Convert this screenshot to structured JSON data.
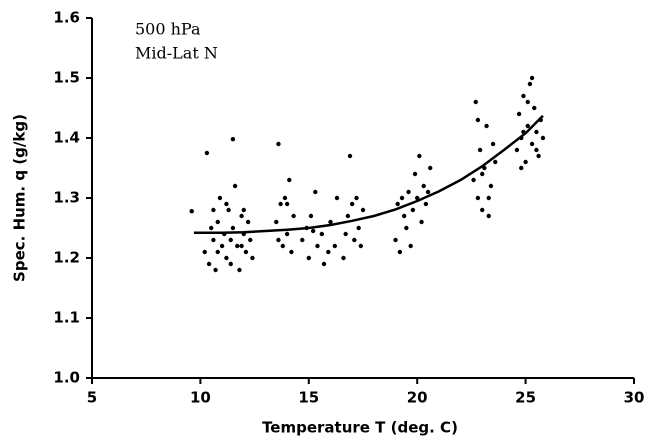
{
  "chart_data": {
    "type": "scatter",
    "xlabel": "Temperature T (deg. C)",
    "ylabel": "Spec. Hum. q (g/kg)",
    "annotations": [
      "500 hPa",
      "Mid-Lat N"
    ],
    "xlim": [
      5,
      30
    ],
    "xticks": [
      5,
      10,
      15,
      20,
      25,
      30
    ],
    "ylim": [
      1.0,
      1.6
    ],
    "yticks": [
      {
        "value": 1.0,
        "label": "1.0"
      },
      1.1,
      1.2,
      1.3,
      1.4,
      1.5,
      1.6
    ],
    "grid": false,
    "series": [
      {
        "color": "#000000",
        "x": [
          9.6,
          10.3,
          10.2,
          10.4,
          10.5,
          10.6,
          10.7,
          10.8,
          10.9,
          11.0,
          11.1,
          11.2,
          11.3,
          11.4,
          11.5,
          11.5,
          11.6,
          11.7,
          11.8,
          11.9,
          12.0,
          12.1,
          12.2,
          12.3,
          12.4,
          10.8,
          11.2,
          11.9,
          12.0,
          10.6,
          11.4,
          13.5,
          13.6,
          13.7,
          13.8,
          13.9,
          14.0,
          14.1,
          14.2,
          14.3,
          13.6,
          14.0,
          14.7,
          14.9,
          15.0,
          15.1,
          15.3,
          15.4,
          15.6,
          15.7,
          15.9,
          16.0,
          16.2,
          16.3,
          15.2,
          16.6,
          16.8,
          16.9,
          17.0,
          17.1,
          17.2,
          17.3,
          17.5,
          16.7,
          17.4,
          19.0,
          19.1,
          19.2,
          19.4,
          19.5,
          19.6,
          19.8,
          19.9,
          20.0,
          20.1,
          20.2,
          20.3,
          20.4,
          20.6,
          19.3,
          19.7,
          20.5,
          22.6,
          22.7,
          22.8,
          22.9,
          23.0,
          23.1,
          23.2,
          23.3,
          23.4,
          23.5,
          22.8,
          23.0,
          23.3,
          23.6,
          24.6,
          24.7,
          24.8,
          24.9,
          25.0,
          25.1,
          25.2,
          25.3,
          25.4,
          25.5,
          25.6,
          25.7,
          25.8,
          24.8,
          25.1,
          25.3,
          25.5,
          24.9
        ],
        "values": [
          1.278,
          1.375,
          1.21,
          1.19,
          1.25,
          1.23,
          1.18,
          1.26,
          1.3,
          1.22,
          1.24,
          1.2,
          1.28,
          1.19,
          1.398,
          1.25,
          1.32,
          1.22,
          1.18,
          1.27,
          1.24,
          1.21,
          1.26,
          1.23,
          1.2,
          1.21,
          1.29,
          1.22,
          1.28,
          1.28,
          1.23,
          1.26,
          1.39,
          1.29,
          1.22,
          1.3,
          1.24,
          1.33,
          1.21,
          1.27,
          1.23,
          1.29,
          1.23,
          1.25,
          1.2,
          1.27,
          1.31,
          1.22,
          1.24,
          1.19,
          1.21,
          1.26,
          1.22,
          1.3,
          1.245,
          1.2,
          1.27,
          1.37,
          1.29,
          1.23,
          1.3,
          1.25,
          1.28,
          1.24,
          1.22,
          1.23,
          1.29,
          1.21,
          1.27,
          1.25,
          1.31,
          1.28,
          1.34,
          1.3,
          1.37,
          1.26,
          1.32,
          1.29,
          1.35,
          1.3,
          1.22,
          1.31,
          1.33,
          1.46,
          1.3,
          1.38,
          1.28,
          1.35,
          1.42,
          1.27,
          1.32,
          1.39,
          1.43,
          1.34,
          1.3,
          1.36,
          1.38,
          1.44,
          1.4,
          1.47,
          1.36,
          1.42,
          1.49,
          1.39,
          1.45,
          1.41,
          1.37,
          1.43,
          1.4,
          1.35,
          1.46,
          1.5,
          1.38,
          1.41
        ]
      },
      {
        "type": "line",
        "color": "#000000",
        "x": [
          9.7,
          11,
          12,
          13,
          14,
          15,
          16,
          17,
          18,
          19,
          20,
          21,
          22,
          23,
          24,
          25,
          25.8
        ],
        "values": [
          1.242,
          1.242,
          1.243,
          1.245,
          1.247,
          1.25,
          1.255,
          1.262,
          1.27,
          1.281,
          1.295,
          1.311,
          1.33,
          1.353,
          1.38,
          1.408,
          1.437
        ]
      }
    ]
  }
}
